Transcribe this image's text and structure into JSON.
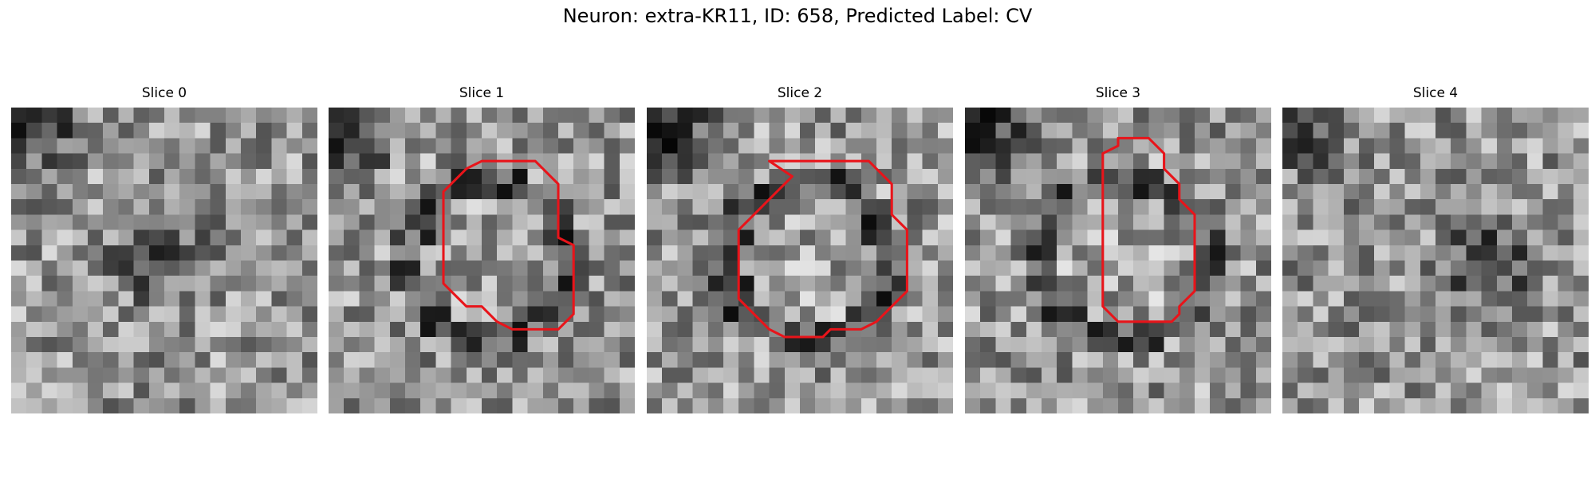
{
  "figure": {
    "title": "Neuron: extra-KR11, ID: 658, Predicted Label: CV"
  },
  "panels": [
    {
      "title": "Slice 0",
      "seed": 11,
      "ring": 0,
      "dark_blob": 1,
      "contour": null
    },
    {
      "title": "Slice 1",
      "seed": 23,
      "ring": 1,
      "dark_blob": 0,
      "contour": [
        [
          10,
          3.5
        ],
        [
          13.5,
          3.5
        ],
        [
          14,
          4
        ],
        [
          14.5,
          4.5
        ],
        [
          15,
          5
        ],
        [
          15,
          8.5
        ],
        [
          16,
          9
        ],
        [
          16,
          13.5
        ],
        [
          15.5,
          14
        ],
        [
          15,
          14.5
        ],
        [
          12,
          14.5
        ],
        [
          11,
          14
        ],
        [
          10.5,
          13.5
        ],
        [
          10,
          13
        ],
        [
          9,
          13
        ],
        [
          8.5,
          12.5
        ],
        [
          8,
          12
        ],
        [
          7.5,
          11.5
        ],
        [
          7.5,
          5.5
        ],
        [
          8,
          5
        ],
        [
          8.5,
          4.5
        ],
        [
          9,
          4
        ]
      ]
    },
    {
      "title": "Slice 2",
      "seed": 37,
      "ring": 1,
      "dark_blob": 0,
      "contour": [
        [
          8,
          3.5
        ],
        [
          14.5,
          3.5
        ],
        [
          15.5,
          4.5
        ],
        [
          16,
          5
        ],
        [
          16,
          7
        ],
        [
          17,
          8
        ],
        [
          17,
          12
        ],
        [
          16.5,
          12.5
        ],
        [
          16,
          13
        ],
        [
          15.5,
          13.5
        ],
        [
          15,
          14
        ],
        [
          14,
          14.5
        ],
        [
          12,
          14.5
        ],
        [
          11.5,
          15
        ],
        [
          9,
          15
        ],
        [
          8,
          14.5
        ],
        [
          7.5,
          14
        ],
        [
          7,
          13.5
        ],
        [
          6.5,
          13
        ],
        [
          6,
          12.5
        ],
        [
          6,
          9
        ],
        [
          6,
          8
        ],
        [
          6.5,
          7.5
        ],
        [
          7,
          7
        ],
        [
          7.5,
          6.5
        ],
        [
          8,
          6
        ],
        [
          8.5,
          5.5
        ],
        [
          9,
          5
        ],
        [
          9.5,
          4.5
        ]
      ]
    },
    {
      "title": "Slice 3",
      "seed": 53,
      "ring": 1,
      "dark_blob": 0,
      "contour": [
        [
          10,
          2
        ],
        [
          12,
          2
        ],
        [
          13,
          3
        ],
        [
          13,
          4
        ],
        [
          14,
          5
        ],
        [
          14,
          6
        ],
        [
          15,
          7
        ],
        [
          15,
          12
        ],
        [
          14,
          13
        ],
        [
          14,
          13.5
        ],
        [
          13.5,
          14
        ],
        [
          10,
          14
        ],
        [
          9.5,
          13.5
        ],
        [
          9,
          13
        ],
        [
          9,
          3
        ],
        [
          10,
          2.5
        ]
      ]
    },
    {
      "title": "Slice 4",
      "seed": 71,
      "ring": 0,
      "dark_blob": 2,
      "contour": null
    }
  ],
  "colors": {
    "contour": "#e8141a",
    "background": "#ffffff"
  }
}
